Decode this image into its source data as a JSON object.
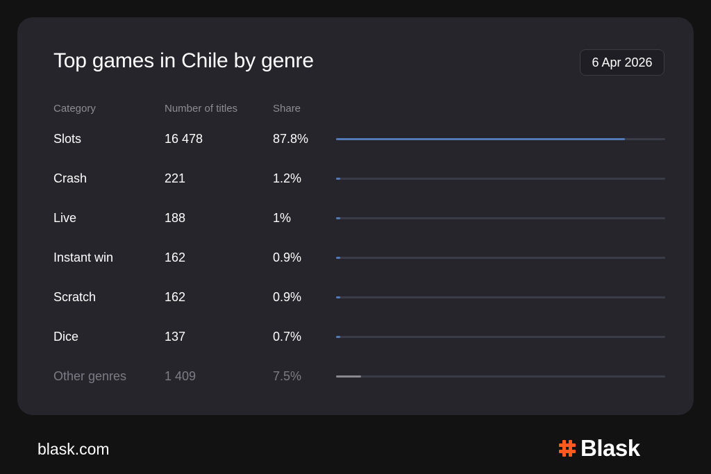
{
  "title": "Top games in Chile by genre",
  "date": "6 Apr 2026",
  "headers": {
    "category": "Category",
    "titles": "Number of titles",
    "share": "Share"
  },
  "rows": [
    {
      "category": "Slots",
      "titles": "16 478",
      "share_label": "87.8%",
      "share": 87.8
    },
    {
      "category": "Crash",
      "titles": "221",
      "share_label": "1.2%",
      "share": 1.2
    },
    {
      "category": "Live",
      "titles": "188",
      "share_label": "1%",
      "share": 1.0
    },
    {
      "category": "Instant win",
      "titles": "162",
      "share_label": "0.9%",
      "share": 0.9
    },
    {
      "category": "Scratch",
      "titles": "162",
      "share_label": "0.9%",
      "share": 0.9
    },
    {
      "category": "Dice",
      "titles": "137",
      "share_label": "0.7%",
      "share": 0.7
    },
    {
      "category": "Other genres",
      "titles": "1 409",
      "share_label": "7.5%",
      "share": 7.5,
      "muted": true
    }
  ],
  "colors": {
    "bar": "#5479b7",
    "bar_other": "#8a8a8e",
    "track": "#3a3d48",
    "brand": "#ff5a1f"
  },
  "chart_data": {
    "type": "bar",
    "title": "Top games in Chile by genre",
    "categories": [
      "Slots",
      "Crash",
      "Live",
      "Instant win",
      "Scratch",
      "Dice",
      "Other genres"
    ],
    "series": [
      {
        "values": [
          87.8,
          1.2,
          1.0,
          0.9,
          0.9,
          0.7,
          7.5
        ]
      }
    ],
    "titles_count": [
      16478,
      221,
      188,
      162,
      162,
      137,
      1409
    ],
    "xlim": [
      0,
      100
    ],
    "orientation": "horizontal"
  },
  "footer": {
    "site": "blask.com",
    "brand": "Blask",
    "logo_icon": "hash-icon"
  }
}
